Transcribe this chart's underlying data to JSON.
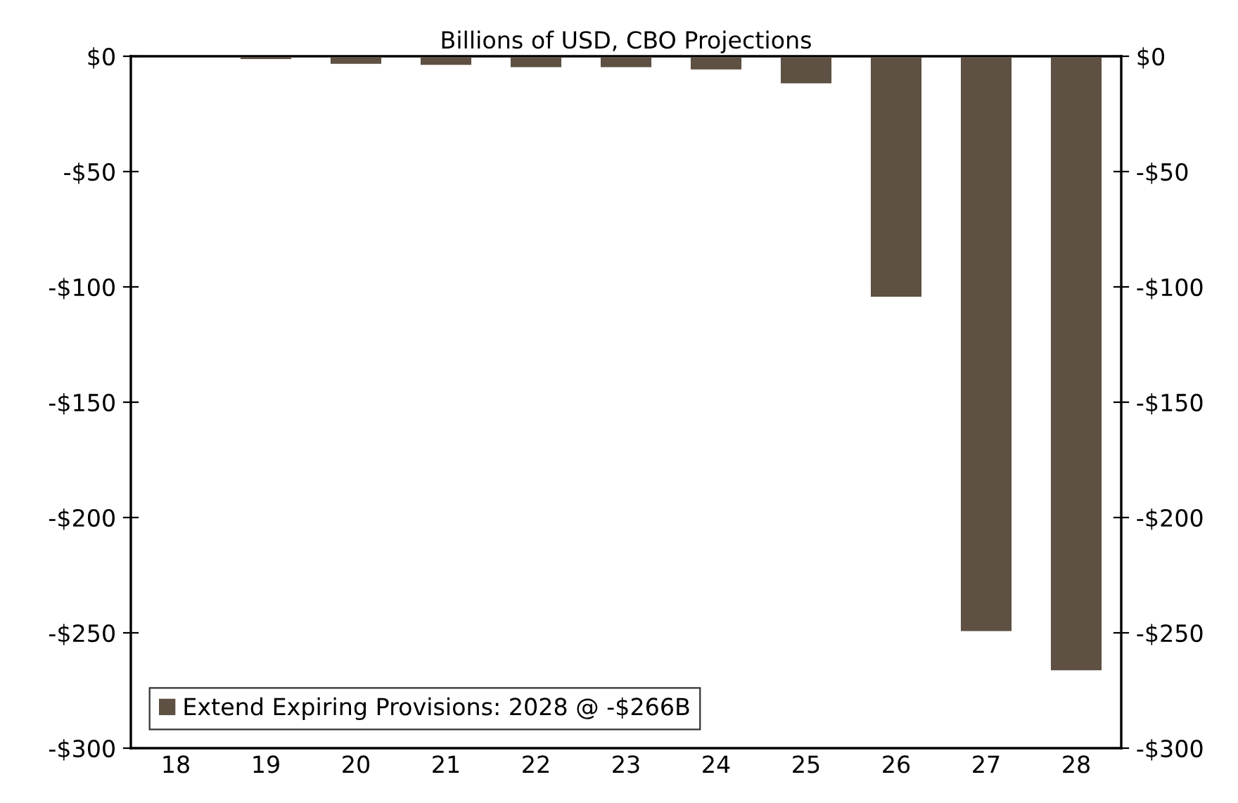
{
  "chart_data": {
    "type": "bar",
    "subtitle": "Billions of USD, CBO Projections",
    "categories": [
      "18",
      "19",
      "20",
      "21",
      "22",
      "23",
      "24",
      "25",
      "26",
      "27",
      "28"
    ],
    "series": [
      {
        "name": "Extend Expiring Provisions: 2028 @ -$266B",
        "color": "#5e5143",
        "values": [
          0,
          -1,
          -3,
          -3.5,
          -4.5,
          -4.5,
          -5.5,
          -11.5,
          -104,
          -249,
          -266
        ]
      }
    ],
    "ylim": [
      -300,
      0
    ],
    "yticks": [
      {
        "value": 0,
        "label": "$0"
      },
      {
        "value": -50,
        "label": "-$50"
      },
      {
        "value": -100,
        "label": "-$100"
      },
      {
        "value": -150,
        "label": "-$150"
      },
      {
        "value": -200,
        "label": "-$200"
      },
      {
        "value": -250,
        "label": "-$250"
      },
      {
        "value": -300,
        "label": "-$300"
      }
    ],
    "y2lim": [
      -300,
      0
    ],
    "y2ticks": [
      {
        "value": 0,
        "label": "$0"
      },
      {
        "value": -50,
        "label": "-$50"
      },
      {
        "value": -100,
        "label": "-$100"
      },
      {
        "value": -150,
        "label": "-$150"
      },
      {
        "value": -200,
        "label": "-$200"
      },
      {
        "value": -250,
        "label": "-$250"
      },
      {
        "value": -300,
        "label": "-$300"
      }
    ],
    "grid": false,
    "legend": "bottom left"
  }
}
